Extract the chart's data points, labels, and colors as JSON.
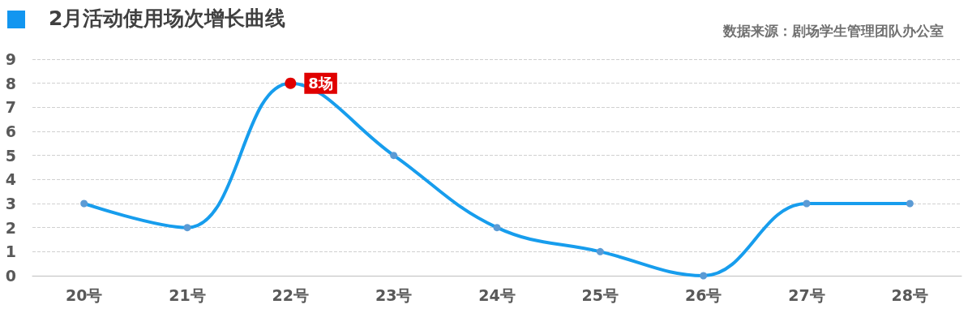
{
  "chart_data": {
    "type": "line",
    "title": "2月活动使用场次增长曲线",
    "categories": [
      "20号",
      "21号",
      "22号",
      "23号",
      "24号",
      "25号",
      "26号",
      "27号",
      "28号"
    ],
    "series": [
      {
        "color": "#179ded",
        "values": [
          3,
          2,
          8,
          5,
          2,
          1,
          0,
          3,
          3
        ]
      }
    ],
    "ylim": [
      0,
      9
    ],
    "yticks": [
      0,
      1,
      2,
      3,
      4,
      5,
      6,
      7,
      8,
      9
    ],
    "grid": "y",
    "marker": "circle",
    "line_style": "solid",
    "annotations": [
      "数据来源：剧场学生管理团队办公室",
      {
        "text": "8场",
        "x": "22号",
        "y": 8
      }
    ]
  }
}
